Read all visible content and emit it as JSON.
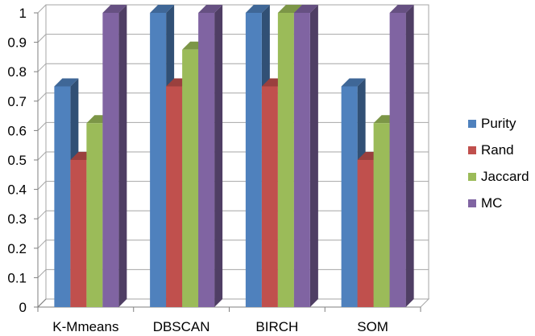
{
  "chart_data": {
    "type": "bar",
    "style": "3d-clustered-column",
    "categories": [
      "K-Mmeans",
      "DBSCAN",
      "BIRCH",
      "SOM"
    ],
    "series": [
      {
        "name": "Purity",
        "color": "#4f81bd",
        "values": [
          0.75,
          1.0,
          1.0,
          0.75
        ]
      },
      {
        "name": "Rand",
        "color": "#c0504d",
        "values": [
          0.5,
          0.75,
          0.75,
          0.5
        ]
      },
      {
        "name": "Jaccard",
        "color": "#9bbb59",
        "values": [
          0.625,
          0.875,
          1.0,
          0.625
        ]
      },
      {
        "name": "MC",
        "color": "#8064a2",
        "values": [
          1.0,
          1.0,
          1.0,
          1.0
        ]
      }
    ],
    "y_ticks": [
      "0",
      "0.1",
      "0.2",
      "0.3",
      "0.4",
      "0.5",
      "0.6",
      "0.7",
      "0.8",
      "0.9",
      "1"
    ],
    "ylim": [
      0,
      1
    ],
    "grid": true,
    "legend_position": "right",
    "title": "",
    "xlabel": "",
    "ylabel": ""
  }
}
